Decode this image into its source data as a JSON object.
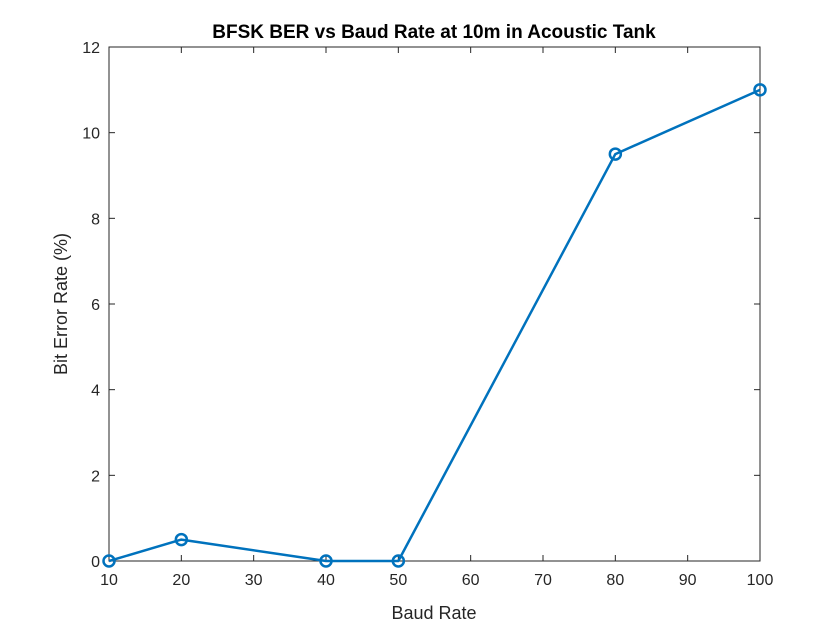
{
  "chart_data": {
    "type": "line",
    "title": "BFSK BER vs Baud Rate at 10m in Acoustic Tank",
    "xlabel": "Baud Rate",
    "ylabel": "Bit Error Rate (%)",
    "xlim": [
      10,
      100
    ],
    "ylim": [
      0,
      12
    ],
    "xticks": [
      10,
      20,
      30,
      40,
      50,
      60,
      70,
      80,
      90,
      100
    ],
    "yticks": [
      0,
      2,
      4,
      6,
      8,
      10,
      12
    ],
    "grid": false,
    "box": true,
    "series": [
      {
        "color": "#0072BD",
        "marker": "circle",
        "x": [
          10,
          20,
          40,
          50,
          80,
          100
        ],
        "y": [
          0,
          0.5,
          0,
          0,
          9.5,
          11
        ]
      }
    ]
  }
}
